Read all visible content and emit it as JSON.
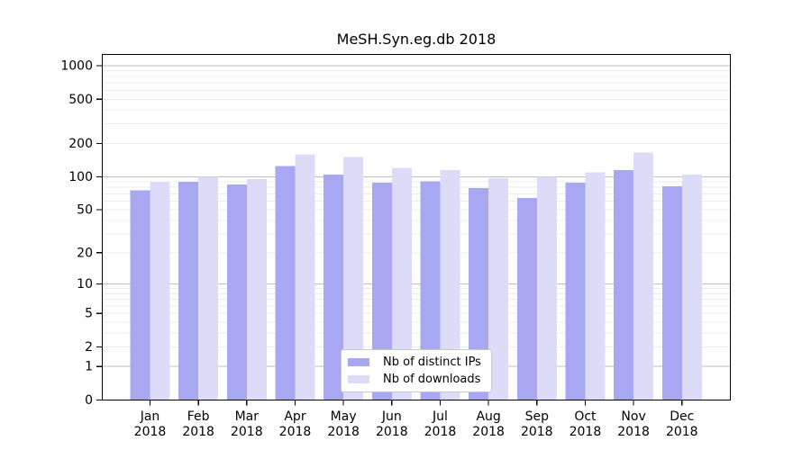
{
  "chart_data": {
    "type": "bar",
    "title": "MeSH.Syn.eg.db 2018",
    "yscale": "log1p",
    "grid": "horizontal-log",
    "legend_position": "lower center",
    "categories": [
      "Jan",
      "Feb",
      "Mar",
      "Apr",
      "May",
      "Jun",
      "Jul",
      "Aug",
      "Sep",
      "Oct",
      "Nov",
      "Dec"
    ],
    "year": "2018",
    "yticks": [
      1000,
      500,
      200,
      100,
      50,
      20,
      10,
      5,
      2,
      1,
      0
    ],
    "ylim": [
      0,
      1275
    ],
    "series": [
      {
        "name": "Nb of distinct IPs",
        "color": "#a7a7f2",
        "values": [
          75,
          90,
          85,
          125,
          105,
          88,
          91,
          79,
          64,
          88,
          115,
          82
        ]
      },
      {
        "name": "Nb of downloads",
        "color": "#dcdcf9",
        "values": [
          90,
          100,
          95,
          160,
          150,
          120,
          115,
          97,
          100,
          110,
          165,
          105
        ]
      }
    ],
    "colors": {
      "grid_major": "#bdbdbd",
      "grid_minor": "#ececec",
      "axis": "#000000",
      "legend_border": "#c9c9c9"
    }
  }
}
